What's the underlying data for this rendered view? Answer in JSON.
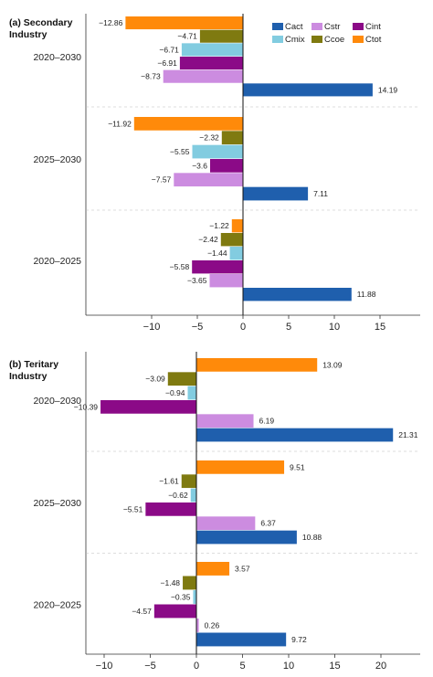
{
  "chart_data": [
    {
      "type": "bar",
      "orientation": "horizontal",
      "title_lines": [
        "(a) Secondary",
        "Industry"
      ],
      "categories": [
        "2020–2030",
        "2025–2030",
        "2020–2025"
      ],
      "xlim": [
        -14,
        15.5
      ],
      "xticks": [
        -10,
        -5,
        0,
        5,
        10,
        15
      ],
      "legend": "top-right",
      "series": [
        {
          "name": "Ctot",
          "values": [
            -12.86,
            -11.92,
            -1.22
          ]
        },
        {
          "name": "Ccoe",
          "values": [
            -4.71,
            -2.32,
            -2.42
          ]
        },
        {
          "name": "Cmix",
          "values": [
            -6.71,
            -5.55,
            -1.44
          ]
        },
        {
          "name": "Cint",
          "values": [
            -6.91,
            -3.6,
            -5.58
          ]
        },
        {
          "name": "Cstr",
          "values": [
            -8.73,
            -7.57,
            -3.65
          ]
        },
        {
          "name": "Cact",
          "values": [
            14.19,
            7.11,
            11.88
          ]
        }
      ]
    },
    {
      "type": "bar",
      "orientation": "horizontal",
      "title_lines": [
        "(b) Teritary",
        "Industry"
      ],
      "categories": [
        "2020–2030",
        "2025–2030",
        "2020–2025"
      ],
      "xlim": [
        -11.5,
        22.5
      ],
      "xticks": [
        -10,
        -5,
        0,
        5,
        10,
        15,
        20
      ],
      "series": [
        {
          "name": "Ctot",
          "values": [
            13.09,
            9.51,
            3.57
          ]
        },
        {
          "name": "Ccoe",
          "values": [
            -3.09,
            -1.61,
            -1.48
          ]
        },
        {
          "name": "Cmix",
          "values": [
            -0.94,
            -0.62,
            -0.35
          ]
        },
        {
          "name": "Cint",
          "values": [
            -10.39,
            -5.51,
            -4.57
          ]
        },
        {
          "name": "Cstr",
          "values": [
            6.19,
            6.37,
            0.26
          ]
        },
        {
          "name": "Cact",
          "values": [
            21.31,
            10.88,
            9.72
          ]
        }
      ]
    }
  ],
  "colors": {
    "Cact": "#1f5fad",
    "Cstr": "#cc8ce0",
    "Cint": "#8b0a87",
    "Cmix": "#82cce0",
    "Ccoe": "#7f7a10",
    "Ctot": "#ff8a0a"
  },
  "legend_order": [
    "Cact",
    "Cstr",
    "Cint",
    "Cmix",
    "Ccoe",
    "Ctot"
  ]
}
